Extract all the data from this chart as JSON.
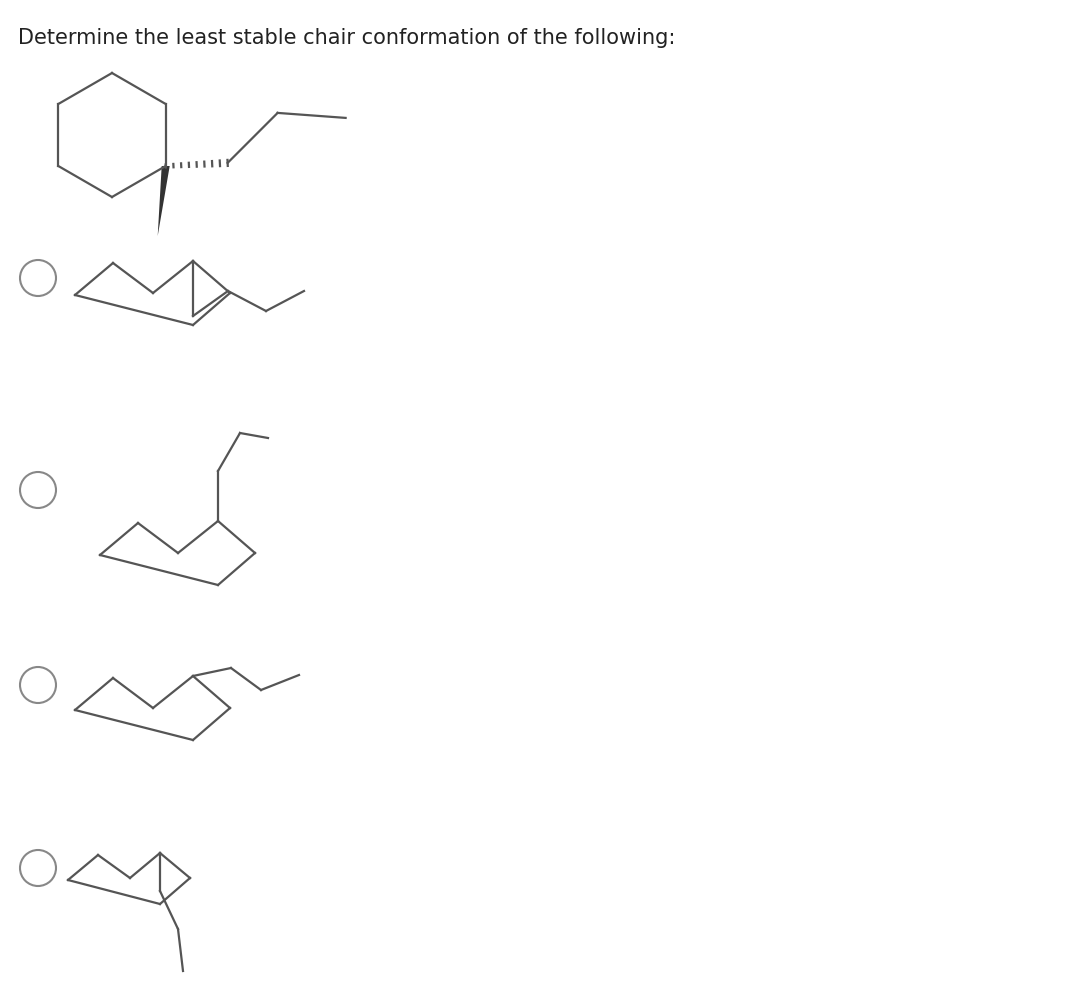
{
  "title": "Determine the least stable chair conformation of the following:",
  "title_fontsize": 15,
  "background_color": "#ffffff",
  "line_color": "#555555",
  "line_width": 1.6
}
